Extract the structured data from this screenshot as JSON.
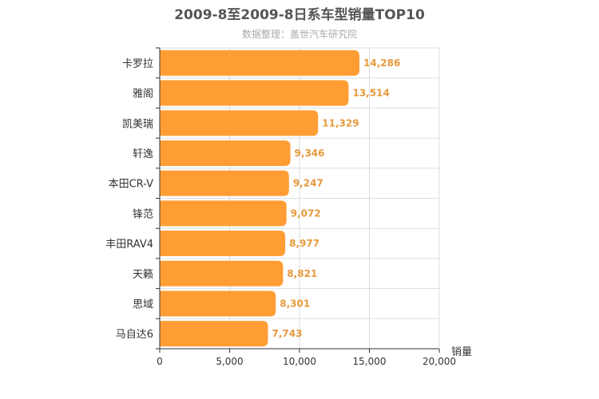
{
  "chart_data": {
    "type": "bar",
    "orientation": "horizontal",
    "title": "2009-8至2009-8日系车型销量TOP10",
    "subtitle": "数据整理：盖世汽车研究院",
    "xlabel": "销量",
    "ylabel": "",
    "xlim": [
      0,
      20000
    ],
    "xticks": [
      0,
      5000,
      10000,
      15000,
      20000
    ],
    "xtick_labels": [
      "0",
      "5,000",
      "10,000",
      "15,000",
      "20,000"
    ],
    "categories": [
      "卡罗拉",
      "雅阁",
      "凯美瑞",
      "轩逸",
      "本田CR-V",
      "锋范",
      "丰田RAV4",
      "天籁",
      "思域",
      "马自达6"
    ],
    "values": [
      14286,
      13514,
      11329,
      9346,
      9247,
      9072,
      8977,
      8821,
      8301,
      7743
    ],
    "value_labels": [
      "14,286",
      "13,514",
      "11,329",
      "9,346",
      "9,247",
      "9,072",
      "8,977",
      "8,821",
      "8,301",
      "7,743"
    ],
    "grid": true,
    "colors": {
      "bar": "#FF9D35",
      "value_label": "#E69A3C",
      "title": "#555555",
      "subtitle": "#AAAAAA",
      "axis_text": "#333333",
      "grid": "#DDDDDD",
      "axis_line": "#333333"
    }
  }
}
